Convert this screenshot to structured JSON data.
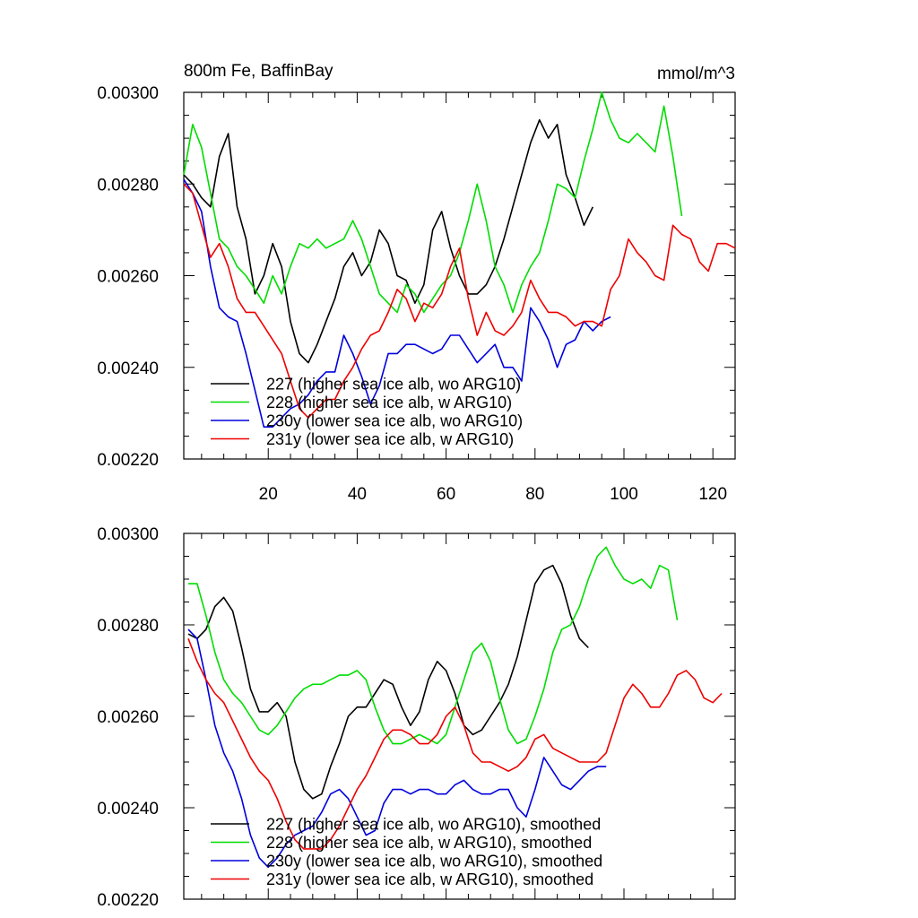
{
  "chart_data": [
    {
      "type": "line",
      "title": "800m Fe, BaffinBay",
      "units": "mmol/m^3",
      "xlim": [
        1,
        125
      ],
      "ylim": [
        0.0022,
        0.003
      ],
      "xticks": [
        20,
        40,
        60,
        80,
        100,
        120
      ],
      "xtick_labels": [
        "20",
        "40",
        "60",
        "80",
        "100",
        "120"
      ],
      "yticks": [
        0.0022,
        0.0024,
        0.0026,
        0.0028,
        0.003
      ],
      "ytick_labels": [
        "0.00220",
        "0.00240",
        "0.00260",
        "0.00280",
        "0.00300"
      ],
      "legend_position": "bottom-left",
      "series": [
        {
          "name": "227 (higher sea ice alb, wo ARG10)",
          "color": "#000000",
          "x": [
            1,
            3,
            5,
            7,
            9,
            11,
            13,
            15,
            17,
            19,
            21,
            23,
            25,
            27,
            29,
            31,
            33,
            35,
            37,
            39,
            41,
            43,
            45,
            47,
            49,
            51,
            53,
            55,
            57,
            59,
            61,
            63,
            65,
            67,
            69,
            71,
            73,
            75,
            77,
            79,
            81,
            83,
            85,
            87,
            89,
            91,
            93
          ],
          "y": [
            0.00282,
            0.0028,
            0.00277,
            0.00275,
            0.00286,
            0.00291,
            0.00275,
            0.00268,
            0.00256,
            0.0026,
            0.00267,
            0.00262,
            0.0025,
            0.00243,
            0.00241,
            0.00245,
            0.0025,
            0.00255,
            0.00262,
            0.00265,
            0.0026,
            0.00263,
            0.0027,
            0.00267,
            0.0026,
            0.00259,
            0.00254,
            0.00258,
            0.0027,
            0.00274,
            0.00266,
            0.0026,
            0.00256,
            0.00256,
            0.00258,
            0.00262,
            0.00268,
            0.00275,
            0.00282,
            0.00289,
            0.00294,
            0.0029,
            0.00293,
            0.00282,
            0.00277,
            0.00271,
            0.00275
          ]
        },
        {
          "name": "228 (higher sea ice alb, w ARG10)",
          "color": "#00dd00",
          "x": [
            1,
            3,
            5,
            7,
            9,
            11,
            13,
            15,
            17,
            19,
            21,
            23,
            25,
            27,
            29,
            31,
            33,
            35,
            37,
            39,
            41,
            43,
            45,
            47,
            49,
            51,
            53,
            55,
            57,
            59,
            61,
            63,
            65,
            67,
            69,
            71,
            73,
            75,
            77,
            79,
            81,
            83,
            85,
            87,
            89,
            91,
            93,
            95,
            97,
            99,
            101,
            103,
            105,
            107,
            109,
            111,
            113
          ],
          "y": [
            0.00282,
            0.00293,
            0.00288,
            0.00278,
            0.00268,
            0.00266,
            0.00262,
            0.0026,
            0.00257,
            0.00254,
            0.0026,
            0.00256,
            0.00262,
            0.00267,
            0.00266,
            0.00268,
            0.00266,
            0.00267,
            0.00268,
            0.00272,
            0.00268,
            0.00262,
            0.00256,
            0.00254,
            0.00252,
            0.00258,
            0.00256,
            0.00252,
            0.00255,
            0.00258,
            0.0026,
            0.00265,
            0.00272,
            0.0028,
            0.00272,
            0.00262,
            0.00258,
            0.00252,
            0.00258,
            0.00262,
            0.00265,
            0.00272,
            0.0028,
            0.00279,
            0.00277,
            0.00285,
            0.00292,
            0.003,
            0.00294,
            0.0029,
            0.00289,
            0.00291,
            0.00289,
            0.00287,
            0.00297,
            0.00286,
            0.00273
          ]
        },
        {
          "name": "230y (lower sea ice alb, wo ARG10)",
          "color": "#0000dd",
          "x": [
            1,
            3,
            5,
            7,
            9,
            11,
            13,
            15,
            17,
            19,
            21,
            23,
            25,
            27,
            29,
            31,
            33,
            35,
            37,
            39,
            41,
            43,
            45,
            47,
            49,
            51,
            53,
            55,
            57,
            59,
            61,
            63,
            65,
            67,
            69,
            71,
            73,
            75,
            77,
            79,
            81,
            83,
            85,
            87,
            89,
            91,
            93,
            95,
            97
          ],
          "y": [
            0.00281,
            0.00278,
            0.00274,
            0.00262,
            0.00253,
            0.00251,
            0.0025,
            0.00243,
            0.00235,
            0.00227,
            0.00227,
            0.00229,
            0.00231,
            0.00232,
            0.00234,
            0.00237,
            0.00239,
            0.00239,
            0.00247,
            0.00243,
            0.00238,
            0.00232,
            0.00236,
            0.00243,
            0.00243,
            0.00245,
            0.00245,
            0.00244,
            0.00243,
            0.00244,
            0.00247,
            0.00247,
            0.00244,
            0.00241,
            0.00243,
            0.00245,
            0.0024,
            0.0024,
            0.00237,
            0.00253,
            0.0025,
            0.00246,
            0.0024,
            0.00245,
            0.00246,
            0.0025,
            0.00248,
            0.0025,
            0.00251
          ]
        },
        {
          "name": "231y (lower sea ice alb, w ARG10)",
          "color": "#ee0000",
          "x": [
            1,
            3,
            5,
            7,
            9,
            11,
            13,
            15,
            17,
            19,
            21,
            23,
            25,
            27,
            29,
            31,
            33,
            35,
            37,
            39,
            41,
            43,
            45,
            47,
            49,
            51,
            53,
            55,
            57,
            59,
            61,
            63,
            65,
            67,
            69,
            71,
            73,
            75,
            77,
            79,
            81,
            83,
            85,
            87,
            89,
            91,
            93,
            95,
            97,
            99,
            101,
            103,
            105,
            107,
            109,
            111,
            113,
            115,
            117,
            119,
            121,
            123,
            125
          ],
          "y": [
            0.0028,
            0.00278,
            0.00271,
            0.00264,
            0.00267,
            0.00262,
            0.00255,
            0.00252,
            0.00252,
            0.00249,
            0.00246,
            0.00243,
            0.00237,
            0.00231,
            0.00229,
            0.00231,
            0.00233,
            0.00233,
            0.00237,
            0.0024,
            0.00244,
            0.00247,
            0.00248,
            0.00252,
            0.00257,
            0.00255,
            0.0025,
            0.00254,
            0.00253,
            0.00256,
            0.00262,
            0.00266,
            0.00255,
            0.00247,
            0.00252,
            0.00248,
            0.00247,
            0.00249,
            0.00252,
            0.00259,
            0.00255,
            0.00252,
            0.00252,
            0.00251,
            0.00249,
            0.0025,
            0.0025,
            0.00249,
            0.00257,
            0.0026,
            0.00268,
            0.00265,
            0.00263,
            0.0026,
            0.00259,
            0.00271,
            0.00269,
            0.00268,
            0.00263,
            0.00261,
            0.00267,
            0.00267,
            0.00266
          ]
        }
      ],
      "legend": [
        "227 (higher sea ice alb, wo ARG10)",
        "228 (higher sea ice alb, w ARG10)",
        "230y (lower sea ice alb, wo ARG10)",
        "231y (lower sea ice alb, w ARG10)"
      ]
    },
    {
      "type": "line",
      "title": "",
      "xlim": [
        1,
        125
      ],
      "ylim": [
        0.0022,
        0.003
      ],
      "yticks": [
        0.0022,
        0.0024,
        0.0026,
        0.0028,
        0.003
      ],
      "ytick_labels": [
        "0.00220",
        "0.00240",
        "0.00260",
        "0.00280",
        "0.00300"
      ],
      "legend_position": "bottom-left",
      "series": [
        {
          "name": "227 (higher sea ice alb, wo ARG10), smoothed",
          "color": "#000000",
          "x": [
            2,
            4,
            6,
            8,
            10,
            12,
            14,
            16,
            18,
            20,
            22,
            24,
            26,
            28,
            30,
            32,
            34,
            36,
            38,
            40,
            42,
            44,
            46,
            48,
            50,
            52,
            54,
            56,
            58,
            60,
            62,
            64,
            66,
            68,
            70,
            72,
            74,
            76,
            78,
            80,
            82,
            84,
            86,
            88,
            90,
            92
          ],
          "y": [
            0.00278,
            0.00277,
            0.00279,
            0.00284,
            0.00286,
            0.00283,
            0.00275,
            0.00266,
            0.00261,
            0.00261,
            0.00263,
            0.0026,
            0.0025,
            0.00244,
            0.00242,
            0.00243,
            0.00249,
            0.00254,
            0.0026,
            0.00262,
            0.00262,
            0.00265,
            0.00268,
            0.00267,
            0.00262,
            0.00258,
            0.00261,
            0.00268,
            0.00272,
            0.0027,
            0.00265,
            0.00258,
            0.00256,
            0.00257,
            0.0026,
            0.00263,
            0.00267,
            0.00273,
            0.00281,
            0.00289,
            0.00292,
            0.00293,
            0.00289,
            0.00282,
            0.00277,
            0.00275
          ]
        },
        {
          "name": "228 (higher sea ice alb, w ARG10), smoothed",
          "color": "#00dd00",
          "x": [
            2,
            4,
            6,
            8,
            10,
            12,
            14,
            16,
            18,
            20,
            22,
            24,
            26,
            28,
            30,
            32,
            34,
            36,
            38,
            40,
            42,
            44,
            46,
            48,
            50,
            52,
            54,
            56,
            58,
            60,
            62,
            64,
            66,
            68,
            70,
            72,
            74,
            76,
            78,
            80,
            82,
            84,
            86,
            88,
            90,
            92,
            94,
            96,
            98,
            100,
            102,
            104,
            106,
            108,
            110,
            112
          ],
          "y": [
            0.00289,
            0.00289,
            0.00282,
            0.00274,
            0.00268,
            0.00265,
            0.00263,
            0.0026,
            0.00257,
            0.00256,
            0.00258,
            0.00261,
            0.00264,
            0.00266,
            0.00267,
            0.00267,
            0.00268,
            0.00269,
            0.00269,
            0.0027,
            0.00268,
            0.00262,
            0.00257,
            0.00254,
            0.00254,
            0.00255,
            0.00256,
            0.00255,
            0.00254,
            0.00256,
            0.00262,
            0.00268,
            0.00274,
            0.00276,
            0.00272,
            0.00264,
            0.00257,
            0.00254,
            0.00255,
            0.0026,
            0.00266,
            0.00274,
            0.00279,
            0.0028,
            0.00284,
            0.0029,
            0.00295,
            0.00297,
            0.00293,
            0.0029,
            0.00289,
            0.0029,
            0.00288,
            0.00293,
            0.00292,
            0.00281
          ]
        },
        {
          "name": "230y (lower sea ice alb, wo ARG10), smoothed",
          "color": "#0000dd",
          "x": [
            2,
            4,
            6,
            8,
            10,
            12,
            14,
            16,
            18,
            20,
            22,
            24,
            26,
            28,
            30,
            32,
            34,
            36,
            38,
            40,
            42,
            44,
            46,
            48,
            50,
            52,
            54,
            56,
            58,
            60,
            62,
            64,
            66,
            68,
            70,
            72,
            74,
            76,
            78,
            80,
            82,
            84,
            86,
            88,
            90,
            92,
            94,
            96
          ],
          "y": [
            0.00279,
            0.00277,
            0.00268,
            0.00258,
            0.00252,
            0.00248,
            0.00242,
            0.00234,
            0.00229,
            0.00227,
            0.00229,
            0.00232,
            0.00234,
            0.00235,
            0.00236,
            0.00239,
            0.00243,
            0.00244,
            0.00242,
            0.00238,
            0.00234,
            0.00235,
            0.00241,
            0.00244,
            0.00244,
            0.00243,
            0.00244,
            0.00244,
            0.00243,
            0.00243,
            0.00245,
            0.00246,
            0.00244,
            0.00243,
            0.00243,
            0.00244,
            0.00244,
            0.0024,
            0.00238,
            0.00244,
            0.00251,
            0.00248,
            0.00245,
            0.00244,
            0.00246,
            0.00248,
            0.00249,
            0.00249
          ]
        },
        {
          "name": "231y (lower sea ice alb, w ARG10), smoothed",
          "color": "#ee0000",
          "x": [
            2,
            4,
            6,
            8,
            10,
            12,
            14,
            16,
            18,
            20,
            22,
            24,
            26,
            28,
            30,
            32,
            34,
            36,
            38,
            40,
            42,
            44,
            46,
            48,
            50,
            52,
            54,
            56,
            58,
            60,
            62,
            64,
            66,
            68,
            70,
            72,
            74,
            76,
            78,
            80,
            82,
            84,
            86,
            88,
            90,
            92,
            94,
            96,
            98,
            100,
            102,
            104,
            106,
            108,
            110,
            112,
            114,
            116,
            118,
            120,
            122
          ],
          "y": [
            0.00277,
            0.00272,
            0.00268,
            0.00265,
            0.00263,
            0.00259,
            0.00255,
            0.00251,
            0.00248,
            0.00246,
            0.00242,
            0.00237,
            0.00233,
            0.00231,
            0.00231,
            0.00231,
            0.00233,
            0.00236,
            0.0024,
            0.00244,
            0.00247,
            0.00251,
            0.00255,
            0.00257,
            0.00257,
            0.00256,
            0.00254,
            0.00254,
            0.00256,
            0.0026,
            0.00262,
            0.00258,
            0.00252,
            0.0025,
            0.0025,
            0.00249,
            0.00248,
            0.00249,
            0.00251,
            0.00255,
            0.00256,
            0.00253,
            0.00252,
            0.00251,
            0.0025,
            0.0025,
            0.0025,
            0.00252,
            0.00258,
            0.00264,
            0.00267,
            0.00265,
            0.00262,
            0.00262,
            0.00265,
            0.00269,
            0.0027,
            0.00268,
            0.00264,
            0.00263,
            0.00265
          ]
        }
      ],
      "legend": [
        "227 (higher sea ice alb, wo ARG10), smoothed",
        "228 (higher sea ice alb, w ARG10), smoothed",
        "230y (lower sea ice alb, wo ARG10), smoothed",
        "231y (lower sea ice alb, w ARG10), smoothed"
      ]
    }
  ]
}
